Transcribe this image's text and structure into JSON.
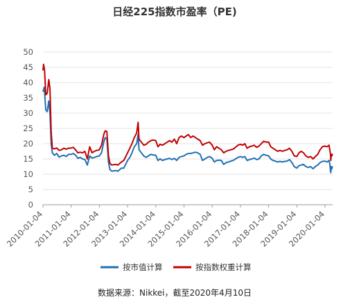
{
  "chart_data": {
    "type": "line",
    "title": "日经225指数市盈率（PE)",
    "source_note": "数据来源：Nikkei，截至2020年4月10日",
    "ylim": [
      0,
      50
    ],
    "y_ticks": [
      "0",
      "5",
      "10",
      "15",
      "20",
      "25",
      "30",
      "35",
      "40",
      "45",
      "50"
    ],
    "x_tick_labels": [
      "2010-01-04",
      "2011-01-04",
      "2012-01-04",
      "2013-01-04",
      "2014-01-04",
      "2015-01-04",
      "2016-01-04",
      "2017-01-04",
      "2018-01-04",
      "2019-01-04",
      "2020-01-04"
    ],
    "grid": "horizontal",
    "legend_position": "bottom",
    "series": [
      {
        "name": "按市值计算",
        "color": "#1f6fb4",
        "points": [
          [
            "2010-01-04",
            37
          ],
          [
            "2010-01-20",
            38.5
          ],
          [
            "2010-02-10",
            31
          ],
          [
            "2010-03-01",
            30.5
          ],
          [
            "2010-03-20",
            34
          ],
          [
            "2010-04-05",
            30
          ],
          [
            "2010-04-20",
            20
          ],
          [
            "2010-05-05",
            17
          ],
          [
            "2010-06-01",
            16.2
          ],
          [
            "2010-07-01",
            16.8
          ],
          [
            "2010-08-01",
            15.6
          ],
          [
            "2010-09-01",
            16
          ],
          [
            "2010-10-01",
            16.2
          ],
          [
            "2010-11-01",
            15.8
          ],
          [
            "2010-12-01",
            16.5
          ],
          [
            "2011-01-04",
            16.5
          ],
          [
            "2011-02-01",
            16.8
          ],
          [
            "2011-03-01",
            16.3
          ],
          [
            "2011-04-01",
            15.2
          ],
          [
            "2011-05-01",
            15.5
          ],
          [
            "2011-06-01",
            15
          ],
          [
            "2011-07-01",
            14.8
          ],
          [
            "2011-08-01",
            13
          ],
          [
            "2011-09-01",
            16
          ],
          [
            "2011-10-01",
            15.3
          ],
          [
            "2011-11-01",
            15.5
          ],
          [
            "2011-12-01",
            15.8
          ],
          [
            "2012-01-04",
            16
          ],
          [
            "2012-02-01",
            17
          ],
          [
            "2012-03-01",
            20.5
          ],
          [
            "2012-03-20",
            22
          ],
          [
            "2012-04-10",
            21.5
          ],
          [
            "2012-05-01",
            14
          ],
          [
            "2012-05-20",
            11.5
          ],
          [
            "2012-06-15",
            11
          ],
          [
            "2012-08-01",
            11.2
          ],
          [
            "2012-09-01",
            11
          ],
          [
            "2012-10-15",
            12
          ],
          [
            "2012-11-15",
            12
          ],
          [
            "2012-12-15",
            13.5
          ],
          [
            "2013-01-04",
            14.5
          ],
          [
            "2013-02-01",
            15.5
          ],
          [
            "2013-03-01",
            17
          ],
          [
            "2013-04-01",
            19
          ],
          [
            "2013-05-01",
            20
          ],
          [
            "2013-05-20",
            23
          ],
          [
            "2013-06-01",
            18
          ],
          [
            "2013-07-01",
            17
          ],
          [
            "2013-08-01",
            16
          ],
          [
            "2013-09-01",
            15.5
          ],
          [
            "2013-10-01",
            16
          ],
          [
            "2013-11-01",
            16.5
          ],
          [
            "2013-12-01",
            16.3
          ],
          [
            "2014-01-04",
            16.2
          ],
          [
            "2014-02-01",
            14.5
          ],
          [
            "2014-03-01",
            15
          ],
          [
            "2014-04-01",
            14.5
          ],
          [
            "2014-05-01",
            14.8
          ],
          [
            "2014-06-01",
            15
          ],
          [
            "2014-07-01",
            15.2
          ],
          [
            "2014-08-01",
            14.8
          ],
          [
            "2014-09-01",
            15.2
          ],
          [
            "2014-10-01",
            14.5
          ],
          [
            "2014-11-01",
            15.5
          ],
          [
            "2014-12-01",
            15.8
          ],
          [
            "2015-01-04",
            16
          ],
          [
            "2015-02-01",
            16.5
          ],
          [
            "2015-03-01",
            16.8
          ],
          [
            "2015-04-01",
            16.8
          ],
          [
            "2015-05-01",
            17
          ],
          [
            "2015-06-01",
            17.2
          ],
          [
            "2015-07-01",
            17
          ],
          [
            "2015-08-01",
            16.5
          ],
          [
            "2015-09-01",
            14.5
          ],
          [
            "2015-10-01",
            15
          ],
          [
            "2015-11-01",
            15.5
          ],
          [
            "2015-12-01",
            15.8
          ],
          [
            "2016-01-04",
            15.2
          ],
          [
            "2016-02-01",
            14
          ],
          [
            "2016-03-01",
            14.5
          ],
          [
            "2016-04-01",
            14.6
          ],
          [
            "2016-05-01",
            14.5
          ],
          [
            "2016-06-01",
            13.2
          ],
          [
            "2016-07-01",
            13.8
          ],
          [
            "2016-08-01",
            14
          ],
          [
            "2016-09-01",
            14.3
          ],
          [
            "2016-10-01",
            14.5
          ],
          [
            "2016-11-01",
            15
          ],
          [
            "2016-12-01",
            15.5
          ],
          [
            "2017-01-04",
            15.8
          ],
          [
            "2017-02-01",
            15.5
          ],
          [
            "2017-03-01",
            15.8
          ],
          [
            "2017-04-01",
            14.5
          ],
          [
            "2017-05-01",
            14.8
          ],
          [
            "2017-06-01",
            15
          ],
          [
            "2017-07-01",
            15.3
          ],
          [
            "2017-08-01",
            14.8
          ],
          [
            "2017-09-01",
            15
          ],
          [
            "2017-10-01",
            16
          ],
          [
            "2017-11-01",
            16.5
          ],
          [
            "2017-12-01",
            16.2
          ],
          [
            "2018-01-04",
            16
          ],
          [
            "2018-02-01",
            15
          ],
          [
            "2018-03-01",
            14.5
          ],
          [
            "2018-04-01",
            14.3
          ],
          [
            "2018-05-01",
            14
          ],
          [
            "2018-06-01",
            14.2
          ],
          [
            "2018-07-01",
            14
          ],
          [
            "2018-08-01",
            14.2
          ],
          [
            "2018-09-01",
            14.3
          ],
          [
            "2018-10-01",
            14.8
          ],
          [
            "2018-11-01",
            13.8
          ],
          [
            "2018-12-01",
            12.5
          ],
          [
            "2019-01-04",
            12
          ],
          [
            "2019-02-01",
            12.8
          ],
          [
            "2019-03-01",
            13
          ],
          [
            "2019-04-01",
            13.2
          ],
          [
            "2019-05-01",
            12.5
          ],
          [
            "2019-06-01",
            12.2
          ],
          [
            "2019-07-01",
            12.5
          ],
          [
            "2019-08-01",
            11.8
          ],
          [
            "2019-09-01",
            12.5
          ],
          [
            "2019-10-01",
            13
          ],
          [
            "2019-11-01",
            13.8
          ],
          [
            "2019-12-01",
            14.2
          ],
          [
            "2020-01-04",
            14.3
          ],
          [
            "2020-02-01",
            14
          ],
          [
            "2020-02-25",
            14.5
          ],
          [
            "2020-03-05",
            13.5
          ],
          [
            "2020-03-15",
            11
          ],
          [
            "2020-03-19",
            10.5
          ],
          [
            "2020-03-25",
            12.5
          ],
          [
            "2020-04-01",
            11.8
          ],
          [
            "2020-04-10",
            12.6
          ]
        ]
      },
      {
        "name": "按指数权重计算",
        "color": "#c00000",
        "points": [
          [
            "2010-01-04",
            44
          ],
          [
            "2010-01-12",
            46
          ],
          [
            "2010-01-25",
            44
          ],
          [
            "2010-02-10",
            36
          ],
          [
            "2010-03-01",
            36.5
          ],
          [
            "2010-03-20",
            41
          ],
          [
            "2010-04-05",
            38
          ],
          [
            "2010-04-20",
            24
          ],
          [
            "2010-05-05",
            18.5
          ],
          [
            "2010-06-01",
            18.3
          ],
          [
            "2010-07-01",
            18.6
          ],
          [
            "2010-08-01",
            17.8
          ],
          [
            "2010-09-01",
            18
          ],
          [
            "2010-10-01",
            18.5
          ],
          [
            "2010-11-01",
            18.2
          ],
          [
            "2010-12-01",
            18.5
          ],
          [
            "2011-01-04",
            18.6
          ],
          [
            "2011-02-01",
            18.8
          ],
          [
            "2011-03-01",
            18
          ],
          [
            "2011-04-01",
            17
          ],
          [
            "2011-05-01",
            17.2
          ],
          [
            "2011-06-01",
            17
          ],
          [
            "2011-07-01",
            17.5
          ],
          [
            "2011-08-01",
            15
          ],
          [
            "2011-09-01",
            19
          ],
          [
            "2011-10-01",
            17
          ],
          [
            "2011-11-01",
            17.5
          ],
          [
            "2011-12-01",
            17.8
          ],
          [
            "2012-01-04",
            18
          ],
          [
            "2012-02-01",
            19.5
          ],
          [
            "2012-03-01",
            23
          ],
          [
            "2012-03-20",
            24.2
          ],
          [
            "2012-04-10",
            24
          ],
          [
            "2012-05-01",
            16
          ],
          [
            "2012-05-20",
            13.5
          ],
          [
            "2012-06-15",
            13
          ],
          [
            "2012-08-01",
            13.2
          ],
          [
            "2012-09-01",
            13
          ],
          [
            "2012-10-15",
            14
          ],
          [
            "2012-11-15",
            14.5
          ],
          [
            "2012-12-15",
            16
          ],
          [
            "2013-01-04",
            17
          ],
          [
            "2013-02-01",
            18.5
          ],
          [
            "2013-03-01",
            20
          ],
          [
            "2013-04-01",
            22
          ],
          [
            "2013-05-01",
            23.5
          ],
          [
            "2013-05-20",
            27
          ],
          [
            "2013-06-01",
            21.5
          ],
          [
            "2013-07-01",
            20.5
          ],
          [
            "2013-08-01",
            19.5
          ],
          [
            "2013-09-01",
            19.8
          ],
          [
            "2013-10-01",
            20.5
          ],
          [
            "2013-11-01",
            21
          ],
          [
            "2013-12-01",
            21.2
          ],
          [
            "2014-01-04",
            21
          ],
          [
            "2014-02-01",
            19
          ],
          [
            "2014-03-01",
            19.8
          ],
          [
            "2014-04-01",
            19.5
          ],
          [
            "2014-05-01",
            20
          ],
          [
            "2014-06-01",
            20.5
          ],
          [
            "2014-07-01",
            21
          ],
          [
            "2014-08-01",
            20.5
          ],
          [
            "2014-09-01",
            21.5
          ],
          [
            "2014-10-01",
            20
          ],
          [
            "2014-11-01",
            22
          ],
          [
            "2014-12-01",
            22.5
          ],
          [
            "2015-01-04",
            22
          ],
          [
            "2015-02-01",
            22.5
          ],
          [
            "2015-03-01",
            23
          ],
          [
            "2015-04-01",
            22
          ],
          [
            "2015-05-01",
            22.5
          ],
          [
            "2015-06-01",
            22
          ],
          [
            "2015-07-01",
            21.5
          ],
          [
            "2015-08-01",
            21
          ],
          [
            "2015-09-01",
            19.5
          ],
          [
            "2015-10-01",
            20
          ],
          [
            "2015-11-01",
            20.3
          ],
          [
            "2015-12-01",
            20.5
          ],
          [
            "2016-01-04",
            19.5
          ],
          [
            "2016-02-01",
            18
          ],
          [
            "2016-03-01",
            19
          ],
          [
            "2016-04-01",
            18.5
          ],
          [
            "2016-05-01",
            18
          ],
          [
            "2016-06-01",
            17
          ],
          [
            "2016-07-01",
            17.5
          ],
          [
            "2016-08-01",
            17.8
          ],
          [
            "2016-09-01",
            18
          ],
          [
            "2016-10-01",
            18.2
          ],
          [
            "2016-11-01",
            18.8
          ],
          [
            "2016-12-01",
            19.5
          ],
          [
            "2017-01-04",
            19.8
          ],
          [
            "2017-02-01",
            19.5
          ],
          [
            "2017-03-01",
            20
          ],
          [
            "2017-04-01",
            18.5
          ],
          [
            "2017-05-01",
            19
          ],
          [
            "2017-06-01",
            19.2
          ],
          [
            "2017-07-01",
            19.5
          ],
          [
            "2017-08-01",
            18.8
          ],
          [
            "2017-09-01",
            19.2
          ],
          [
            "2017-10-01",
            20
          ],
          [
            "2017-11-01",
            20.8
          ],
          [
            "2017-12-01",
            20.5
          ],
          [
            "2018-01-04",
            20.5
          ],
          [
            "2018-02-01",
            19
          ],
          [
            "2018-03-01",
            18.5
          ],
          [
            "2018-04-01",
            18
          ],
          [
            "2018-05-01",
            17.5
          ],
          [
            "2018-06-01",
            17.8
          ],
          [
            "2018-07-01",
            17.5
          ],
          [
            "2018-08-01",
            17.8
          ],
          [
            "2018-09-01",
            18
          ],
          [
            "2018-10-01",
            18.5
          ],
          [
            "2018-11-01",
            17.5
          ],
          [
            "2018-12-01",
            16
          ],
          [
            "2019-01-04",
            15.8
          ],
          [
            "2019-02-01",
            17
          ],
          [
            "2019-03-01",
            17.5
          ],
          [
            "2019-04-01",
            17
          ],
          [
            "2019-05-01",
            16
          ],
          [
            "2019-06-01",
            15.5
          ],
          [
            "2019-07-01",
            15.8
          ],
          [
            "2019-08-01",
            15
          ],
          [
            "2019-09-01",
            15.8
          ],
          [
            "2019-10-01",
            16.5
          ],
          [
            "2019-11-01",
            18
          ],
          [
            "2019-12-01",
            19
          ],
          [
            "2020-01-04",
            19.2
          ],
          [
            "2020-02-01",
            19
          ],
          [
            "2020-02-25",
            19.5
          ],
          [
            "2020-03-05",
            18
          ],
          [
            "2020-03-15",
            16.5
          ],
          [
            "2020-03-19",
            14.5
          ],
          [
            "2020-03-25",
            16.5
          ],
          [
            "2020-04-01",
            16
          ],
          [
            "2020-04-10",
            16.7
          ]
        ]
      }
    ]
  }
}
